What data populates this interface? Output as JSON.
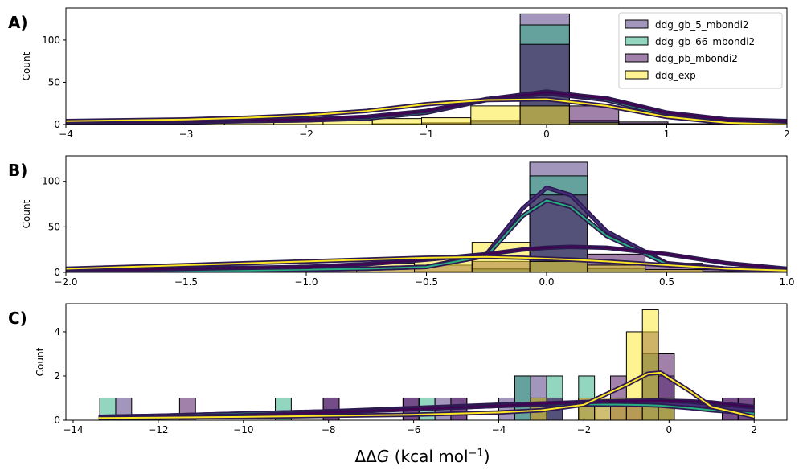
{
  "chart_data": [
    {
      "type": "histogram",
      "panel_label": "A)",
      "ylabel": "Count",
      "legend": "upper right",
      "xlim": [
        -4,
        2
      ],
      "ylim": [
        0,
        138
      ],
      "xticks": [
        {
          "value": -4,
          "label": "−4"
        },
        {
          "value": -3,
          "label": "−3"
        },
        {
          "value": -2,
          "label": "−2"
        },
        {
          "value": -1,
          "label": "−1"
        },
        0,
        1,
        2
      ],
      "yticks": [
        0,
        50,
        100
      ],
      "bins": [
        -3.91,
        -3.5,
        -3.09,
        -2.68,
        -2.27,
        -1.86,
        -1.45,
        -1.04,
        -0.63,
        -0.22,
        0.19,
        0.6,
        1.01,
        1.42,
        1.83
      ],
      "series": [
        {
          "name": "ddg_gb_5_mbondi2",
          "color": "#472d7b",
          "values": [
            0,
            0,
            0,
            0,
            0,
            0,
            0,
            1,
            4,
            131,
            5,
            1,
            0,
            0
          ],
          "kde": {
            "x": [
              -4,
              -3.5,
              -3,
              -2.5,
              -2,
              -1.5,
              -1,
              -0.5,
              0,
              0.5,
              1,
              1.5,
              2
            ],
            "values": [
              2,
              3,
              3,
              4,
              5,
              8,
              15,
              30,
              39,
              30,
              12,
              5,
              3
            ]
          }
        },
        {
          "name": "ddg_gb_66_mbondi2",
          "color": "#28ae80",
          "values": [
            0,
            0,
            0,
            0,
            0,
            0,
            0,
            1,
            4,
            118,
            4,
            1,
            0,
            0
          ],
          "kde": {
            "x": [
              -4,
              -3.5,
              -3,
              -2.5,
              -2,
              -1.5,
              -1,
              -0.5,
              0,
              0.5,
              1,
              1.5,
              2
            ],
            "values": [
              2,
              3,
              3,
              4,
              5,
              7,
              14,
              29,
              37,
              29,
              11,
              5,
              3
            ]
          }
        },
        {
          "name": "ddg_pb_mbondi2",
          "color": "#440154",
          "values": [
            0,
            0,
            0,
            0,
            0,
            0,
            1,
            2,
            5,
            95,
            22,
            3,
            1,
            0
          ],
          "kde": {
            "x": [
              -4,
              -3.5,
              -3,
              -2.5,
              -2,
              -1.5,
              -1,
              -0.5,
              0,
              0.5,
              1,
              1.5,
              2
            ],
            "values": [
              3,
              3,
              4,
              5,
              6,
              9,
              16,
              30,
              38,
              31,
              14,
              6,
              4
            ]
          }
        },
        {
          "name": "ddg_exp",
          "color": "#fde725",
          "values": [
            2,
            3,
            3,
            4,
            4,
            5,
            7,
            8,
            22,
            22,
            2,
            1,
            0,
            0
          ],
          "kde": {
            "x": [
              -4,
              -3.5,
              -3,
              -2.5,
              -2,
              -1.5,
              -1,
              -0.5,
              0,
              0.5,
              1,
              1.5,
              2
            ],
            "values": [
              4,
              5,
              6,
              8,
              11,
              16,
              24,
              29,
              30,
              22,
              9,
              2,
              0
            ]
          }
        }
      ]
    },
    {
      "type": "histogram",
      "panel_label": "B)",
      "ylabel": "Count",
      "xlim": [
        -2,
        1
      ],
      "ylim": [
        0,
        128
      ],
      "xticks": [
        {
          "value": -2,
          "label": "−2.0"
        },
        {
          "value": -1.5,
          "label": "−1.5"
        },
        {
          "value": -1,
          "label": "−1.0"
        },
        {
          "value": -0.5,
          "label": "−0.5"
        },
        {
          "value": 0,
          "label": "0.0"
        },
        0.5,
        {
          "value": 1,
          "label": "1.0"
        }
      ],
      "yticks": [
        0,
        50,
        100
      ],
      "bins": [
        -1.99,
        -1.75,
        -1.51,
        -1.27,
        -1.03,
        -0.79,
        -0.55,
        -0.31,
        -0.07,
        0.17,
        0.41,
        0.65,
        0.89
      ],
      "series": [
        {
          "name": "ddg_gb_5_mbondi2",
          "color": "#472d7b",
          "values": [
            0,
            0,
            0,
            0,
            0,
            0,
            1,
            3,
            121,
            5,
            1,
            0
          ],
          "kde": {
            "x": [
              -2,
              -1.75,
              -1.5,
              -1.25,
              -1,
              -0.75,
              -0.5,
              -0.25,
              -0.1,
              0,
              0.1,
              0.25,
              0.5,
              0.75,
              1
            ],
            "values": [
              2,
              2,
              2,
              2,
              3,
              4,
              6,
              20,
              70,
              93,
              85,
              45,
              10,
              4,
              2
            ]
          }
        },
        {
          "name": "ddg_gb_66_mbondi2",
          "color": "#28ae80",
          "values": [
            0,
            0,
            0,
            0,
            0,
            0,
            1,
            4,
            106,
            4,
            1,
            0
          ],
          "kde": {
            "x": [
              -2,
              -1.75,
              -1.5,
              -1.25,
              -1,
              -0.75,
              -0.5,
              -0.25,
              -0.1,
              0,
              0.1,
              0.25,
              0.5,
              0.75,
              1
            ],
            "values": [
              2,
              2,
              2,
              2,
              3,
              4,
              6,
              18,
              62,
              79,
              72,
              40,
              9,
              4,
              2
            ]
          }
        },
        {
          "name": "ddg_pb_mbondi2",
          "color": "#440154",
          "values": [
            1,
            1,
            1,
            2,
            3,
            5,
            8,
            12,
            85,
            20,
            10,
            3
          ],
          "kde": {
            "x": [
              -2,
              -1.75,
              -1.5,
              -1.25,
              -1,
              -0.75,
              -0.5,
              -0.25,
              -0.1,
              0,
              0.1,
              0.25,
              0.5,
              0.75,
              1
            ],
            "values": [
              3,
              3,
              4,
              5,
              6,
              9,
              14,
              20,
              25,
              27,
              28,
              27,
              20,
              10,
              4
            ]
          }
        },
        {
          "name": "ddg_exp",
          "color": "#fde725",
          "values": [
            3,
            4,
            5,
            6,
            8,
            10,
            15,
            33,
            12,
            8,
            3,
            1
          ],
          "kde": {
            "x": [
              -2,
              -1.75,
              -1.5,
              -1.25,
              -1,
              -0.75,
              -0.5,
              -0.25,
              -0.1,
              0,
              0.1,
              0.25,
              0.5,
              0.75,
              1
            ],
            "values": [
              4,
              6,
              8,
              10,
              12,
              14,
              16,
              17,
              16,
              15,
              14,
              12,
              8,
              4,
              2
            ]
          }
        }
      ]
    },
    {
      "type": "histogram",
      "panel_label": "C)",
      "ylabel": "Count",
      "xlabel": [
        "ΔΔ",
        "G",
        " (kcal mol",
        "−1",
        ")"
      ],
      "xlim": [
        -14.17,
        2.77
      ],
      "ylim": [
        0,
        5.27
      ],
      "xticks": [
        {
          "value": -14,
          "label": "−14"
        },
        {
          "value": -12,
          "label": "−12"
        },
        {
          "value": -10,
          "label": "−10"
        },
        {
          "value": -8,
          "label": "−8"
        },
        {
          "value": -6,
          "label": "−6"
        },
        {
          "value": -4,
          "label": "−4"
        },
        {
          "value": -2,
          "label": "−2"
        },
        0,
        2
      ],
      "yticks": [
        0,
        2,
        4
      ],
      "bins": [
        -13.375,
        -13.0,
        -12.625,
        -12.25,
        -11.875,
        -11.5,
        -11.125,
        -10.75,
        -10.375,
        -10.0,
        -9.625,
        -9.25,
        -8.875,
        -8.5,
        -8.125,
        -7.75,
        -7.375,
        -7.0,
        -6.625,
        -6.25,
        -5.875,
        -5.5,
        -5.125,
        -4.75,
        -4.375,
        -4.0,
        -3.625,
        -3.25,
        -2.875,
        -2.5,
        -2.125,
        -1.75,
        -1.375,
        -1.0,
        -0.625,
        -0.25,
        0.125,
        0.5,
        0.875,
        1.25,
        1.625,
        2.0
      ],
      "series": [
        {
          "name": "ddg_gb_5_mbondi2",
          "color": "#472d7b",
          "values": [
            0,
            1,
            0,
            0,
            0,
            0,
            0,
            0,
            0,
            0,
            0,
            0,
            0,
            0,
            1,
            0,
            0,
            0,
            0,
            1,
            0,
            1,
            1,
            0,
            0,
            1,
            2,
            2,
            1,
            0,
            0,
            1,
            1,
            1,
            3,
            2,
            0,
            0,
            0,
            1,
            1
          ],
          "kde": {
            "x": [
              -13.4,
              -12,
              -10,
              -8,
              -6,
              -4,
              -3,
              -2,
              -1,
              -0.5,
              -0.2,
              0.5,
              1,
              2
            ],
            "values": [
              0.15,
              0.2,
              0.3,
              0.4,
              0.55,
              0.7,
              0.75,
              0.78,
              0.78,
              0.77,
              0.75,
              0.7,
              0.62,
              0.45
            ]
          }
        },
        {
          "name": "ddg_gb_66_mbondi2",
          "color": "#28ae80",
          "values": [
            1,
            0,
            0,
            0,
            0,
            0,
            0,
            0,
            0,
            0,
            0,
            1,
            0,
            0,
            0,
            0,
            0,
            0,
            0,
            0,
            1,
            0,
            0,
            0,
            0,
            0,
            2,
            1,
            2,
            0,
            2,
            0,
            0,
            0,
            3,
            1,
            0,
            0,
            0,
            0,
            0
          ],
          "kde": {
            "x": [
              -13.4,
              -12,
              -10,
              -8,
              -6,
              -4,
              -3,
              -2,
              -1,
              -0.5,
              -0.2,
              0.5,
              1,
              2
            ],
            "values": [
              0.15,
              0.2,
              0.3,
              0.4,
              0.5,
              0.65,
              0.7,
              0.72,
              0.7,
              0.68,
              0.66,
              0.55,
              0.45,
              0.3
            ]
          }
        },
        {
          "name": "ddg_pb_mbondi2",
          "color": "#440154",
          "values": [
            0,
            0,
            0,
            0,
            0,
            1,
            0,
            0,
            0,
            0,
            0,
            0,
            0,
            0,
            1,
            0,
            0,
            0,
            0,
            1,
            0,
            0,
            1,
            0,
            0,
            0,
            0,
            1,
            1,
            0,
            1,
            0,
            2,
            1,
            4,
            3,
            0,
            0,
            0,
            1,
            1
          ],
          "kde": {
            "x": [
              -13.4,
              -12,
              -10,
              -8,
              -6,
              -4,
              -3,
              -2,
              -1,
              -0.5,
              -0.2,
              0.5,
              1,
              2
            ],
            "values": [
              0.12,
              0.15,
              0.22,
              0.35,
              0.5,
              0.65,
              0.75,
              0.82,
              0.87,
              0.88,
              0.88,
              0.85,
              0.8,
              0.6
            ]
          }
        },
        {
          "name": "ddg_exp",
          "color": "#fde725",
          "values": [
            0,
            0,
            0,
            0,
            0,
            0,
            0,
            0,
            0,
            0,
            0,
            0,
            0,
            0,
            0,
            0,
            0,
            0,
            0,
            0,
            0,
            0,
            0,
            0,
            0,
            0,
            0,
            1,
            0,
            0,
            1,
            1,
            1,
            4,
            5,
            1,
            0,
            0,
            0,
            0,
            0
          ],
          "kde": {
            "x": [
              -13.4,
              -12,
              -10,
              -8,
              -6,
              -4,
              -3,
              -2,
              -1,
              -0.5,
              -0.2,
              0.5,
              1,
              2
            ],
            "values": [
              0.1,
              0.12,
              0.15,
              0.2,
              0.25,
              0.35,
              0.45,
              0.7,
              1.6,
              2.1,
              2.15,
              1.3,
              0.6,
              0.15
            ]
          }
        }
      ]
    }
  ]
}
